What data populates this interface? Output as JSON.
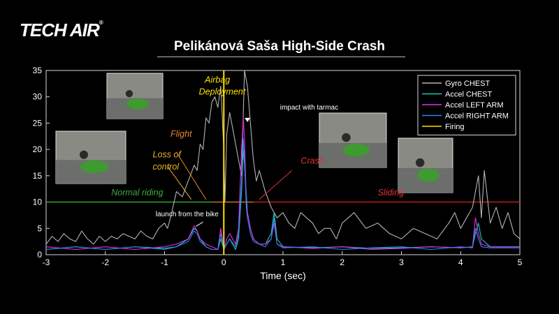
{
  "logo": {
    "text": "TECH AIR",
    "mark": "®"
  },
  "chart_data": {
    "type": "line",
    "title": "Pelikánová Saša High-Side Crash",
    "xlabel": "Time (sec)",
    "ylabel": "",
    "xlim": [
      -3,
      5
    ],
    "ylim": [
      0,
      35
    ],
    "xticks": [
      -3,
      -2,
      -1,
      0,
      1,
      2,
      3,
      4,
      5
    ],
    "yticks": [
      0,
      5,
      10,
      15,
      20,
      25,
      30,
      35
    ],
    "grid": false,
    "legend_position": "top-right",
    "series": [
      {
        "name": "Gyro CHEST",
        "color": "#b4b4b4",
        "x": [
          -3,
          -2.9,
          -2.8,
          -2.7,
          -2.6,
          -2.5,
          -2.4,
          -2.3,
          -2.2,
          -2.1,
          -2.0,
          -1.9,
          -1.8,
          -1.7,
          -1.6,
          -1.5,
          -1.4,
          -1.3,
          -1.2,
          -1.1,
          -1.0,
          -0.95,
          -0.9,
          -0.8,
          -0.7,
          -0.6,
          -0.5,
          -0.45,
          -0.4,
          -0.35,
          -0.3,
          -0.25,
          -0.2,
          -0.15,
          -0.1,
          -0.05,
          0.0,
          0.02,
          0.05,
          0.1,
          0.15,
          0.2,
          0.25,
          0.3,
          0.35,
          0.4,
          0.45,
          0.5,
          0.55,
          0.6,
          0.7,
          0.8,
          0.9,
          1.0,
          1.1,
          1.2,
          1.3,
          1.4,
          1.5,
          1.6,
          1.7,
          1.8,
          1.9,
          2.0,
          2.2,
          2.4,
          2.6,
          2.8,
          3.0,
          3.2,
          3.4,
          3.6,
          3.8,
          3.9,
          4.0,
          4.1,
          4.2,
          4.3,
          4.35,
          4.4,
          4.5,
          4.6,
          4.7,
          4.8,
          4.9,
          5.0
        ],
        "values": [
          2,
          3.5,
          2.5,
          4,
          3,
          2.5,
          4.5,
          3,
          2,
          3.5,
          2.5,
          3.5,
          3,
          4,
          3.5,
          3,
          4.5,
          3.5,
          3,
          5,
          6,
          5,
          7,
          12,
          11,
          14,
          17,
          16,
          21,
          20,
          26,
          25,
          29,
          30,
          28,
          32,
          20,
          10,
          23,
          27,
          24,
          21,
          18,
          15,
          35,
          32,
          25,
          18,
          14,
          16,
          12,
          9,
          7,
          8,
          6,
          5,
          8,
          7,
          6,
          4,
          5,
          5,
          3,
          6,
          8,
          5,
          6,
          4,
          3,
          5,
          4,
          3,
          6,
          8,
          5,
          7,
          9,
          15,
          7,
          16,
          6,
          9,
          5,
          8,
          4,
          3
        ]
      },
      {
        "name": "Accel CHEST",
        "color": "#19c8b4",
        "x": [
          -3,
          -2.5,
          -2.0,
          -1.5,
          -1.0,
          -0.8,
          -0.6,
          -0.5,
          -0.45,
          -0.4,
          -0.3,
          -0.2,
          -0.1,
          -0.05,
          0.0,
          0.05,
          0.1,
          0.2,
          0.25,
          0.3,
          0.33,
          0.35,
          0.4,
          0.45,
          0.5,
          0.6,
          0.7,
          0.8,
          0.85,
          0.9,
          1.0,
          1.5,
          2.0,
          2.5,
          3.0,
          3.5,
          4.0,
          4.2,
          4.25,
          4.3,
          4.35,
          4.5,
          5.0
        ],
        "values": [
          1,
          1.5,
          1,
          1.5,
          1.2,
          1.5,
          3,
          5,
          4.5,
          3,
          1.5,
          1,
          1,
          3,
          1,
          2,
          3,
          1,
          3,
          12,
          20,
          17,
          8,
          5,
          3,
          2,
          2,
          4,
          8,
          3,
          1.5,
          1.3,
          1.5,
          1.2,
          1.3,
          1.5,
          1.3,
          1.5,
          4,
          6,
          3,
          1.5,
          1.5
        ]
      },
      {
        "name": "Accel LEFT ARM",
        "color": "#e62ee6",
        "x": [
          -3,
          -2.5,
          -2.0,
          -1.5,
          -1.0,
          -0.8,
          -0.6,
          -0.5,
          -0.45,
          -0.4,
          -0.3,
          -0.2,
          -0.1,
          -0.05,
          0.0,
          0.05,
          0.1,
          0.2,
          0.25,
          0.3,
          0.33,
          0.35,
          0.38,
          0.4,
          0.45,
          0.5,
          0.6,
          0.7,
          0.8,
          0.85,
          0.9,
          1.0,
          1.5,
          2.0,
          2.5,
          3.0,
          3.5,
          4.0,
          4.2,
          4.25,
          4.3,
          4.35,
          4.5,
          5.0
        ],
        "values": [
          1.5,
          1,
          1.5,
          1,
          1.5,
          2,
          3,
          5.5,
          4.5,
          3,
          2,
          1.5,
          1,
          5,
          1,
          3,
          4,
          2,
          5,
          20,
          26,
          22,
          10,
          8,
          5,
          3,
          2,
          2,
          3,
          6,
          2,
          1.5,
          1.2,
          1.5,
          1,
          1.2,
          1.5,
          1.3,
          1.5,
          7,
          4,
          2,
          1.5,
          1.5
        ]
      },
      {
        "name": "Accel RIGHT ARM",
        "color": "#2c84f0",
        "x": [
          -3,
          -2.5,
          -2.0,
          -1.5,
          -1.0,
          -0.8,
          -0.6,
          -0.5,
          -0.45,
          -0.4,
          -0.3,
          -0.2,
          -0.1,
          -0.05,
          0.0,
          0.05,
          0.1,
          0.2,
          0.25,
          0.3,
          0.33,
          0.35,
          0.38,
          0.4,
          0.45,
          0.5,
          0.6,
          0.7,
          0.8,
          0.85,
          0.9,
          1.0,
          1.5,
          2.0,
          2.5,
          3.0,
          3.5,
          4.0,
          4.2,
          4.25,
          4.3,
          4.35,
          4.5,
          5.0
        ],
        "values": [
          1,
          1.5,
          1,
          1.5,
          1,
          1.5,
          2.5,
          4.5,
          4,
          2.5,
          1.5,
          1,
          1,
          4,
          1,
          2,
          3,
          1.5,
          4,
          14,
          22,
          18,
          9,
          7,
          4,
          2.5,
          2,
          1.5,
          3,
          7,
          2,
          1.3,
          1.5,
          1,
          1.3,
          1.5,
          1,
          1.5,
          1.3,
          5,
          3,
          1.5,
          1.3,
          1.3
        ]
      },
      {
        "name": "Firing",
        "color": "#ffe100",
        "x": [
          0,
          0
        ],
        "values": [
          0,
          35
        ]
      }
    ],
    "phase_line": {
      "y": 10,
      "segments": [
        {
          "x": [
            -3,
            -0.2
          ],
          "color": "#3caa3c"
        },
        {
          "x": [
            -0.2,
            0.5
          ],
          "color": "#d2781e"
        },
        {
          "x": [
            0.5,
            5
          ],
          "color": "#c81e1e"
        }
      ]
    },
    "annotations": [
      {
        "id": "normal",
        "text": "Normal riding",
        "x": -1.9,
        "y": 11.3,
        "color": "#3caa3c",
        "italic": true
      },
      {
        "id": "flight",
        "text": "Flight",
        "x": -0.9,
        "y": 22.4,
        "color": "#e8822a",
        "italic": true
      },
      {
        "id": "loss1",
        "text": "Loss of",
        "x": -1.2,
        "y": 18.5,
        "color": "#e8b428",
        "italic": true
      },
      {
        "id": "loss2",
        "text": "control",
        "x": -1.2,
        "y": 16.2,
        "color": "#e8b428",
        "italic": true
      },
      {
        "id": "airbag1",
        "text": "Airbag",
        "x": -0.32,
        "y": 32.7,
        "color": "#ffe100",
        "italic": true
      },
      {
        "id": "airbag2",
        "text": "Deployment",
        "x": -0.42,
        "y": 30.4,
        "color": "#ffe100",
        "italic": true
      },
      {
        "id": "impact",
        "text": "impact with tarmac",
        "x": 0.95,
        "y": 27.6,
        "color": "#ffffff",
        "italic": false
      },
      {
        "id": "crash",
        "text": "Crash",
        "x": 1.3,
        "y": 17.3,
        "color": "#e63232",
        "italic": true
      },
      {
        "id": "sliding",
        "text": "Sliding",
        "x": 2.6,
        "y": 11.3,
        "color": "#e63232",
        "italic": true
      },
      {
        "id": "launch",
        "text": "launch from the bike",
        "x": -1.15,
        "y": 7.3,
        "color": "#ffffff",
        "italic": false
      }
    ]
  }
}
